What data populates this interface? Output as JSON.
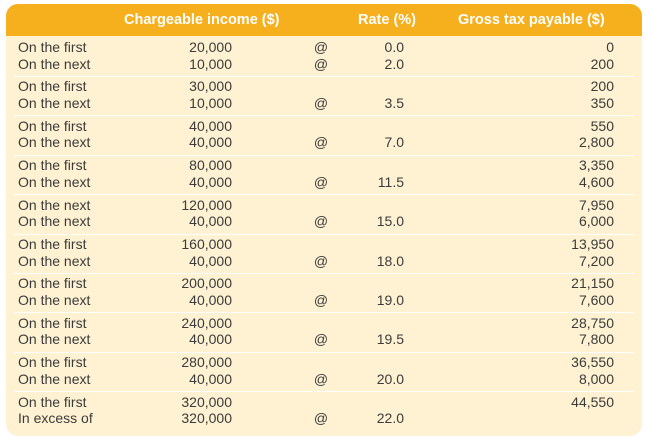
{
  "header": {
    "income": "Chargeable income ($)",
    "rate": "Rate (%)",
    "tax": "Gross tax payable ($)"
  },
  "rows": [
    {
      "labels": [
        "On the first",
        "On the next"
      ],
      "incomes": [
        "20,000",
        "10,000"
      ],
      "ats": [
        "@",
        "@"
      ],
      "rates": [
        "0.0",
        "2.0"
      ],
      "taxes": [
        "0",
        "200"
      ]
    },
    {
      "labels": [
        "On the first",
        "On the next"
      ],
      "incomes": [
        "30,000",
        "10,000"
      ],
      "ats": [
        "",
        "@"
      ],
      "rates": [
        "",
        "3.5"
      ],
      "taxes": [
        "200",
        "350"
      ]
    },
    {
      "labels": [
        "On the first",
        "On the next"
      ],
      "incomes": [
        "40,000",
        "40,000"
      ],
      "ats": [
        "",
        "@"
      ],
      "rates": [
        "",
        "7.0"
      ],
      "taxes": [
        "550",
        "2,800"
      ]
    },
    {
      "labels": [
        "On the first",
        "On the next"
      ],
      "incomes": [
        "80,000",
        "40,000"
      ],
      "ats": [
        "",
        "@"
      ],
      "rates": [
        "",
        "11.5"
      ],
      "taxes": [
        "3,350",
        "4,600"
      ]
    },
    {
      "labels": [
        "On the next",
        "On the next"
      ],
      "incomes": [
        "120,000",
        "40,000"
      ],
      "ats": [
        "",
        "@"
      ],
      "rates": [
        "",
        "15.0"
      ],
      "taxes": [
        "7,950",
        "6,000"
      ]
    },
    {
      "labels": [
        "On the first",
        "On the next"
      ],
      "incomes": [
        "160,000",
        "40,000"
      ],
      "ats": [
        "",
        "@"
      ],
      "rates": [
        "",
        "18.0"
      ],
      "taxes": [
        "13,950",
        "7,200"
      ]
    },
    {
      "labels": [
        "On the first",
        "On the next"
      ],
      "incomes": [
        "200,000",
        "40,000"
      ],
      "ats": [
        "",
        "@"
      ],
      "rates": [
        "",
        "19.0"
      ],
      "taxes": [
        "21,150",
        "7,600"
      ]
    },
    {
      "labels": [
        "On the first",
        "On the next"
      ],
      "incomes": [
        "240,000",
        "40,000"
      ],
      "ats": [
        "",
        "@"
      ],
      "rates": [
        "",
        "19.5"
      ],
      "taxes": [
        "28,750",
        "7,800"
      ]
    },
    {
      "labels": [
        "On the first",
        "On the next"
      ],
      "incomes": [
        "280,000",
        "40,000"
      ],
      "ats": [
        "",
        "@"
      ],
      "rates": [
        "",
        "20.0"
      ],
      "taxes": [
        "36,550",
        "8,000"
      ]
    },
    {
      "labels": [
        "On the first",
        "In excess of"
      ],
      "incomes": [
        "320,000",
        "320,000"
      ],
      "ats": [
        "",
        "@"
      ],
      "rates": [
        "",
        "22.0"
      ],
      "taxes": [
        "44,550",
        ""
      ]
    }
  ]
}
